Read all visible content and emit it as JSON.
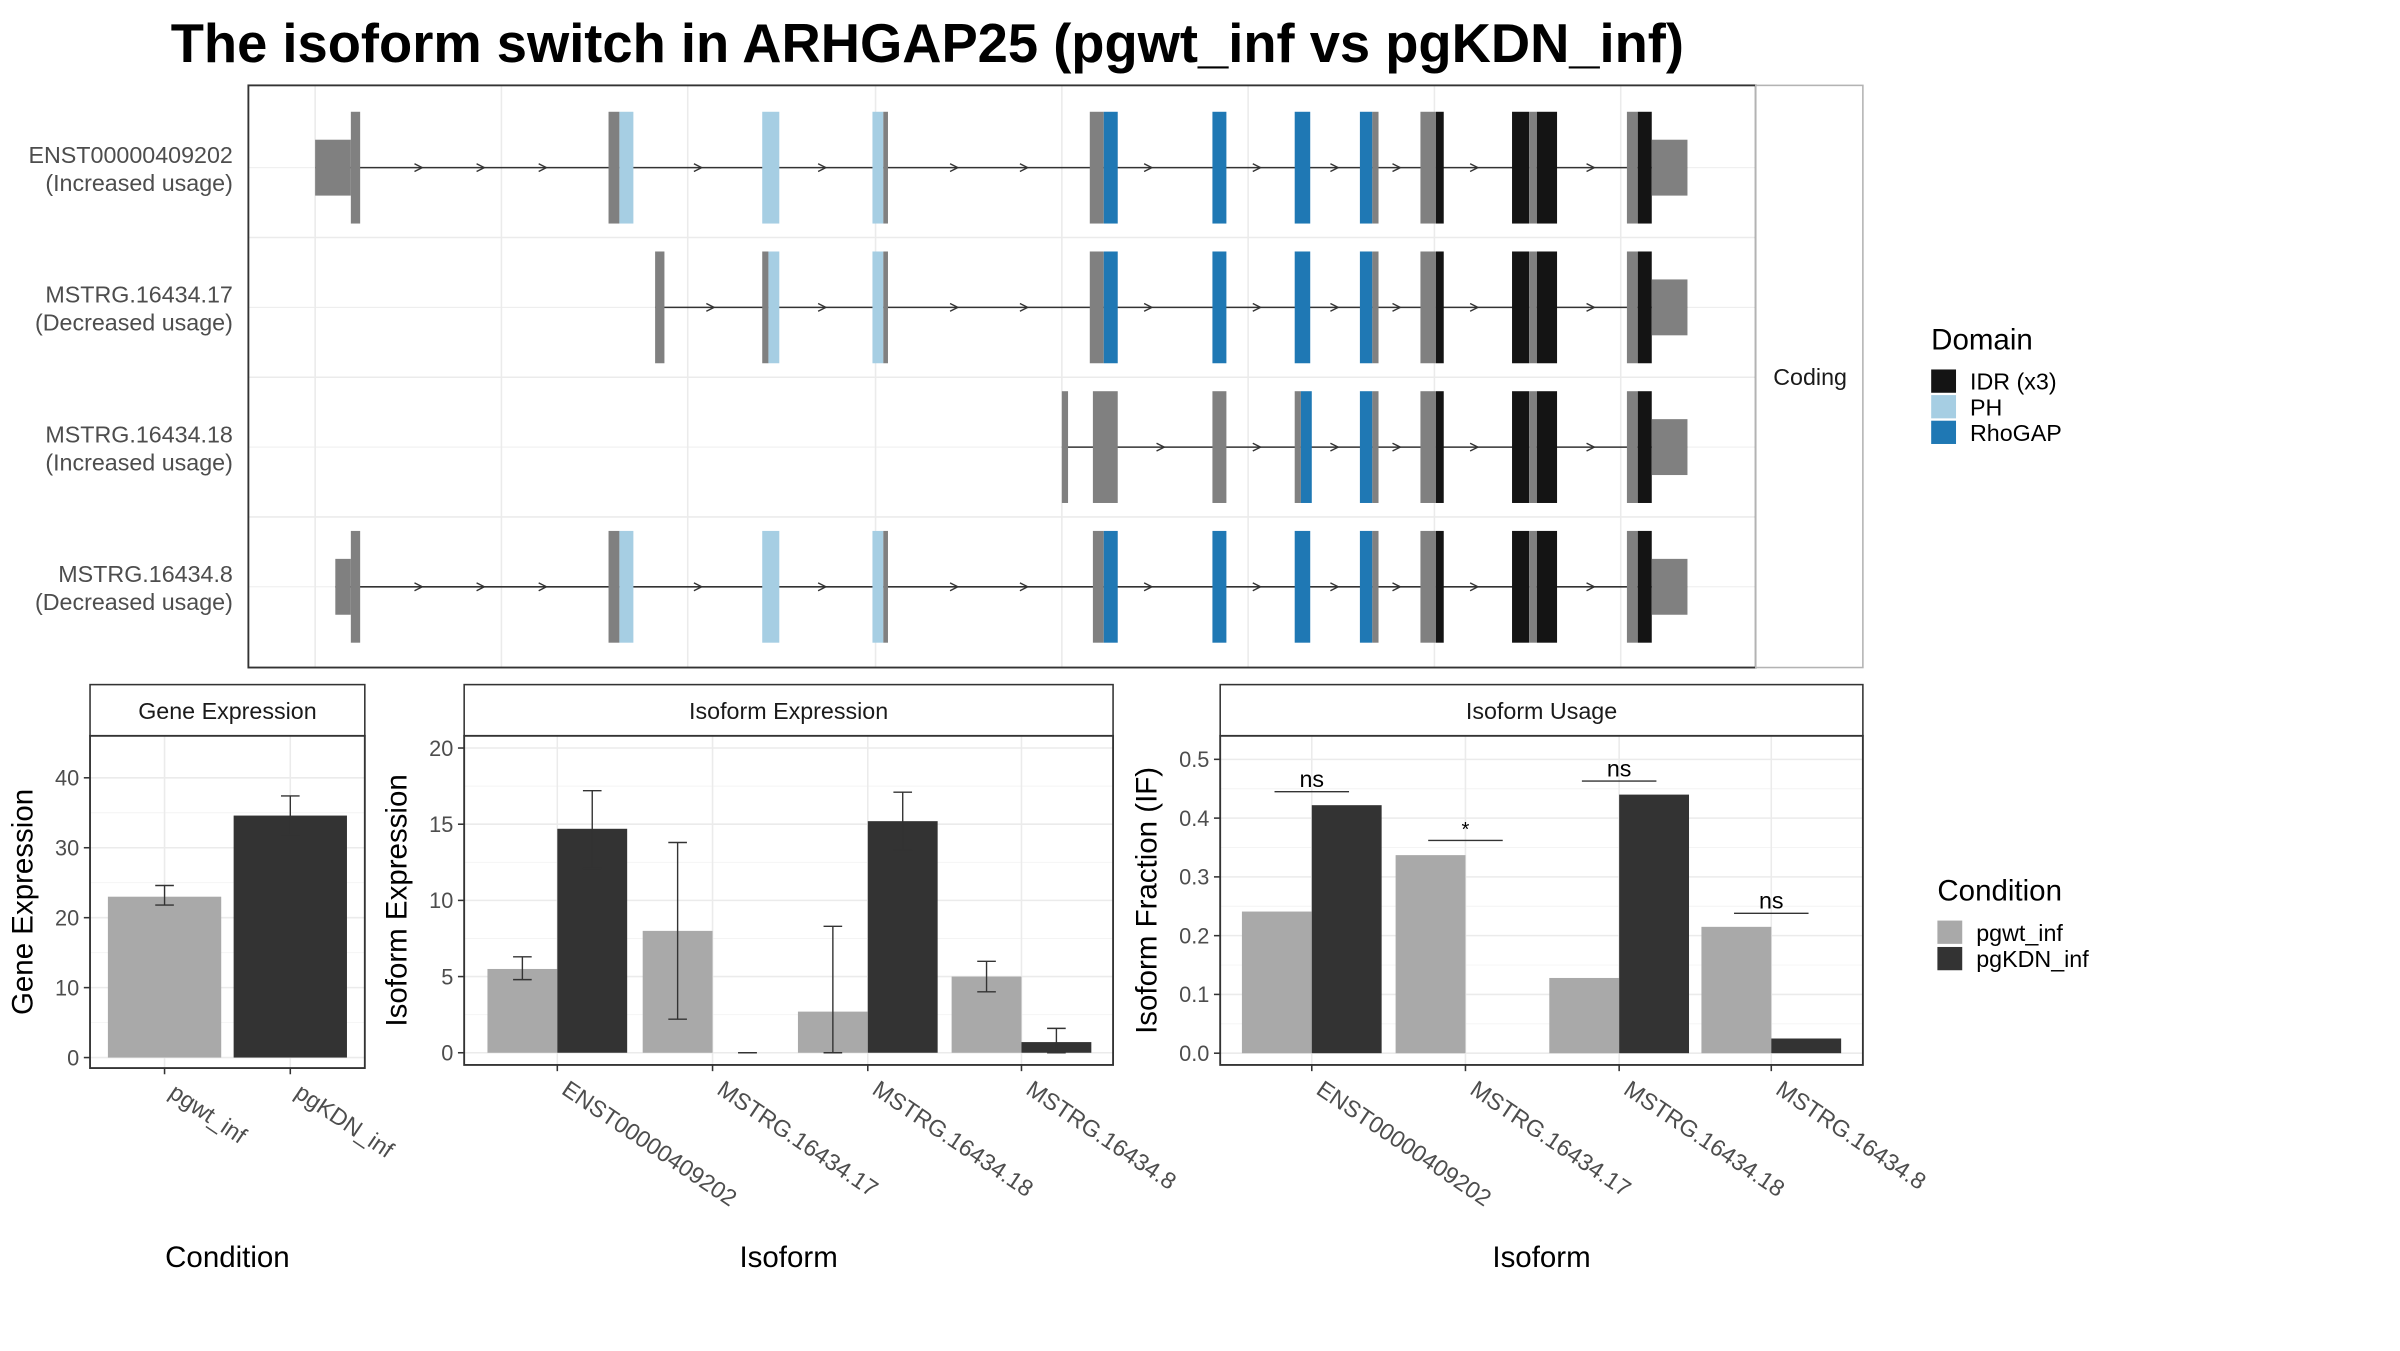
{
  "title": "The isoform switch in ARHGAP25 (pgwt_inf vs pgKDN_inf)",
  "colors": {
    "utr": "#808080",
    "idr": "#141414",
    "ph": "#a6cee3",
    "rhogap": "#1f78b4",
    "pgwt": "#a9a9a9",
    "pgkdn": "#333333"
  },
  "transcripts": {
    "facet_label": "Coding",
    "legend_title": "Domain",
    "legend": [
      {
        "label": "IDR (x3)",
        "key": "idr"
      },
      {
        "label": "PH",
        "key": "ph"
      },
      {
        "label": "RhoGAP",
        "key": "rhogap"
      }
    ],
    "rows": [
      {
        "name": "ENST00000409202",
        "note": "(Increased usage)"
      },
      {
        "name": "MSTRG.16434.17",
        "note": "(Decreased usage)"
      },
      {
        "name": "MSTRG.16434.18",
        "note": "(Increased usage)"
      },
      {
        "name": "MSTRG.16434.8",
        "note": "(Decreased usage)"
      }
    ]
  },
  "legend_condition": {
    "title": "Condition",
    "items": [
      "pgwt_inf",
      "pgKDN_inf"
    ]
  },
  "chart_data": [
    {
      "type": "bar",
      "panel_title": "Gene Expression",
      "xlabel": "Condition",
      "ylabel": "Gene Expression",
      "categories": [
        "pgwt_inf",
        "pgKDN_inf"
      ],
      "values": [
        23,
        34.6
      ],
      "err_low": [
        21.8,
        31.8
      ],
      "err_high": [
        24.6,
        37.4
      ],
      "ylim": [
        -1.5,
        46
      ],
      "yticks": [
        0,
        10,
        20,
        30,
        40
      ]
    },
    {
      "type": "bar",
      "panel_title": "Isoform Expression",
      "xlabel": "Isoform",
      "ylabel": "Isoform Expression",
      "categories": [
        "ENST00000409202",
        "MSTRG.16434.17",
        "MSTRG.16434.18",
        "MSTRG.16434.8"
      ],
      "series": [
        {
          "name": "pgwt_inf",
          "values": [
            5.5,
            8.0,
            2.7,
            5.0
          ],
          "err_low": [
            4.8,
            2.2,
            0.0,
            4.0
          ],
          "err_high": [
            6.3,
            13.8,
            8.3,
            6.0
          ]
        },
        {
          "name": "pgKDN_inf",
          "values": [
            14.7,
            0.0,
            15.2,
            0.7
          ],
          "err_low": [
            12.1,
            0.0,
            13.3,
            0.0
          ],
          "err_high": [
            17.2,
            0.0,
            17.1,
            1.6
          ]
        }
      ],
      "ylim": [
        -0.8,
        20.8
      ],
      "yticks": [
        0,
        5,
        10,
        15,
        20
      ]
    },
    {
      "type": "bar",
      "panel_title": "Isoform Usage",
      "xlabel": "Isoform",
      "ylabel": "Isoform Fraction (IF)",
      "categories": [
        "ENST00000409202",
        "MSTRG.16434.17",
        "MSTRG.16434.18",
        "MSTRG.16434.8"
      ],
      "series": [
        {
          "name": "pgwt_inf",
          "values": [
            0.241,
            0.337,
            0.128,
            0.215
          ]
        },
        {
          "name": "pgKDN_inf",
          "values": [
            0.422,
            0.0,
            0.44,
            0.025
          ]
        }
      ],
      "significance": [
        "ns",
        "*",
        "ns",
        "ns"
      ],
      "sig_y": [
        0.445,
        0.362,
        0.463,
        0.238
      ],
      "ylim": [
        -0.02,
        0.54
      ],
      "yticks": [
        0.0,
        0.1,
        0.2,
        0.3,
        0.4,
        0.5
      ],
      "ytick_labels": [
        "0.0",
        "0.1",
        "0.2",
        "0.3",
        "0.4",
        "0.5"
      ]
    }
  ]
}
